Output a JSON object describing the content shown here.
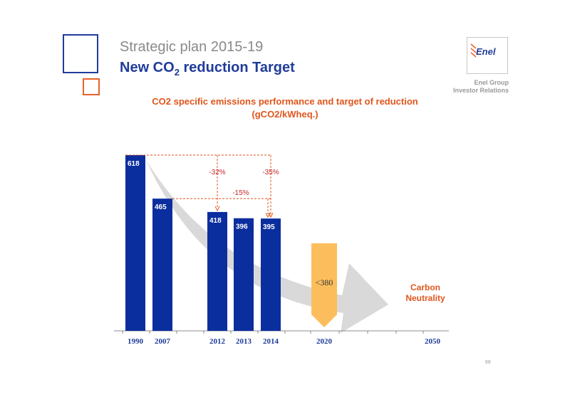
{
  "header": {
    "supertitle": "Strategic plan 2015-19",
    "title_main": "New CO",
    "title_sub": "2",
    "title_rest": " reduction Target",
    "logo_text": "Enel",
    "company_line1": "Enel Group",
    "company_line2": "Investor Relations"
  },
  "page_number": "68",
  "colors": {
    "bar": "#0b2e9e",
    "target": "#fcbe5c",
    "accent": "#e0551c",
    "arrow": "#d9d9d9",
    "percent": "#c62828"
  },
  "chart_data": {
    "type": "bar",
    "title": "CO2 specific emissions performance and target of reduction",
    "subtitle": "(gCO2/kWheq.)",
    "categories": [
      "1990",
      "2007",
      "2012",
      "2013",
      "2014",
      "2020",
      "2050"
    ],
    "bars": [
      {
        "year": "1990",
        "value": 618,
        "label": "618"
      },
      {
        "year": "2007",
        "value": 465,
        "label": "465"
      },
      {
        "year": "2012",
        "value": 418,
        "label": "418"
      },
      {
        "year": "2013",
        "value": 396,
        "label": "396"
      },
      {
        "year": "2014",
        "value": 395,
        "label": "395"
      }
    ],
    "target": {
      "year": "2020",
      "value": 380,
      "label": "<380"
    },
    "annotations": {
      "reduction_2012_vs_1990": "-32%",
      "reduction_2014_vs_1990": "-35%",
      "reduction_2014_vs_2007": "-15%",
      "end_state_line1": "Carbon",
      "end_state_line2": "Neutrality",
      "end_state_year": "2050"
    },
    "ylim": [
      0,
      640
    ]
  }
}
